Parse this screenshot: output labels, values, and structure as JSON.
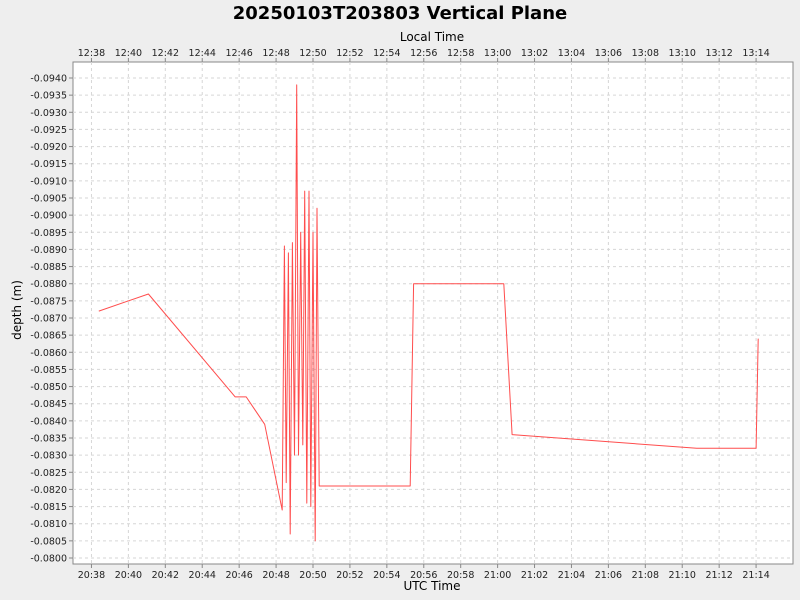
{
  "chart_data": {
    "type": "line",
    "title": "20250103T203803 Vertical Plane",
    "xlabel_bottom": "UTC Time",
    "xlabel_top": "Local Time",
    "ylabel": "depth (m)",
    "y_inverted": true,
    "ylim": [
      -0.094,
      -0.08
    ],
    "xlim": [
      "20:37",
      "21:16"
    ],
    "grid": true,
    "line_color": "#ff4d4d",
    "x_ticks_bottom": [
      "20:38",
      "20:40",
      "20:42",
      "20:44",
      "20:46",
      "20:48",
      "20:50",
      "20:52",
      "20:54",
      "20:56",
      "20:58",
      "21:00",
      "21:02",
      "21:04",
      "21:06",
      "21:08",
      "21:10",
      "21:12",
      "21:14"
    ],
    "x_ticks_top": [
      "12:38",
      "12:40",
      "12:42",
      "12:44",
      "12:46",
      "12:48",
      "12:50",
      "12:52",
      "12:54",
      "12:56",
      "12:58",
      "13:00",
      "13:02",
      "13:04",
      "13:06",
      "13:08",
      "13:10",
      "13:12",
      "13:14"
    ],
    "y_ticks": [
      "-0.0940",
      "-0.0935",
      "-0.0930",
      "-0.0925",
      "-0.0920",
      "-0.0915",
      "-0.0910",
      "-0.0905",
      "-0.0900",
      "-0.0895",
      "-0.0890",
      "-0.0885",
      "-0.0880",
      "-0.0875",
      "-0.0870",
      "-0.0865",
      "-0.0860",
      "-0.0855",
      "-0.0850",
      "-0.0845",
      "-0.0840",
      "-0.0835",
      "-0.0830",
      "-0.0825",
      "-0.0820",
      "-0.0815",
      "-0.0810",
      "-0.0805",
      "-0.0800"
    ],
    "series": [
      {
        "x": [
          "20:38:24",
          "20:41:05",
          "20:45:47",
          "20:46:23",
          "20:47:23",
          "20:48:20",
          "20:48:27",
          "20:48:33",
          "20:48:40",
          "20:48:46",
          "20:48:53",
          "20:49:00",
          "20:49:07",
          "20:49:13",
          "20:49:20",
          "20:49:27",
          "20:49:33",
          "20:49:40",
          "20:49:47",
          "20:49:53",
          "20:50:00",
          "20:50:07",
          "20:50:13",
          "20:50:20",
          "20:55:16",
          "20:55:27",
          "21:00:00",
          "21:00:20",
          "21:00:47",
          "21:10:47",
          "21:14:00",
          "21:14:07"
        ],
        "y": [
          -0.0872,
          -0.0877,
          -0.0847,
          -0.0847,
          -0.0839,
          -0.0814,
          -0.0891,
          -0.0822,
          -0.0889,
          -0.0807,
          -0.0892,
          -0.083,
          -0.0938,
          -0.083,
          -0.0895,
          -0.0833,
          -0.0907,
          -0.0816,
          -0.0907,
          -0.0815,
          -0.0895,
          -0.0805,
          -0.0902,
          -0.0821,
          -0.0821,
          -0.088,
          -0.088,
          -0.088,
          -0.0836,
          -0.0832,
          -0.0832,
          -0.0864
        ]
      }
    ]
  }
}
